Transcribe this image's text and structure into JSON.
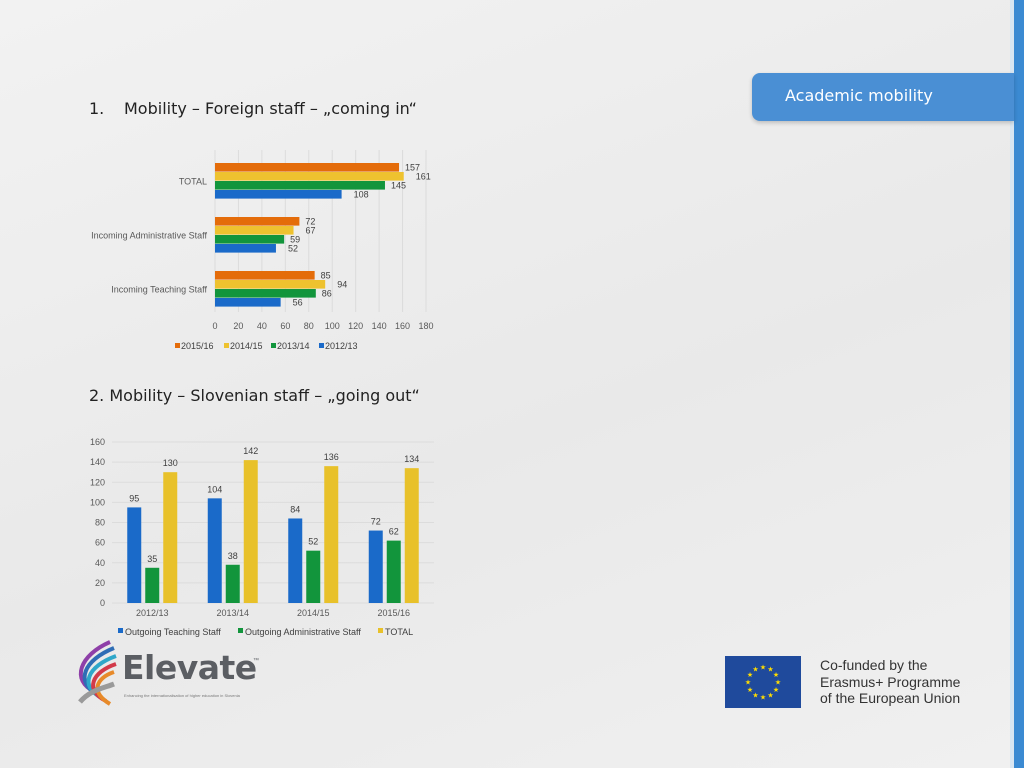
{
  "header": {
    "tab_label": "Academic mobility"
  },
  "section1": {
    "number": "1.",
    "title": "Mobility – Foreign staff – „coming in“"
  },
  "section2": {
    "title": "2. Mobility – Slovenian staff – „going out“"
  },
  "logo": {
    "name": "Elevate",
    "tagline": "Enhancing the internationalisation of higher education in Slovenia"
  },
  "eu": {
    "lines": [
      "Co-funded by the",
      "Erasmus+ Programme",
      "of the European Union"
    ]
  },
  "colors": {
    "orange": "#e46c0a",
    "yellow": "#eec22f",
    "green": "#12953c",
    "blue": "#1a6ac9",
    "tab": "#4a8fd4",
    "grid": "#d9d9d9"
  },
  "chart_data": [
    {
      "type": "bar",
      "orientation": "horizontal",
      "categories": [
        "TOTAL",
        "Incoming Administrative Staff",
        "Incoming Teaching Staff"
      ],
      "series": [
        {
          "name": "2015/16",
          "color": "#e46c0a",
          "values": [
            157,
            72,
            85
          ]
        },
        {
          "name": "2014/15",
          "color": "#eec22f",
          "values": [
            161,
            67,
            94
          ]
        },
        {
          "name": "2013/14",
          "color": "#12953c",
          "values": [
            145,
            59,
            86
          ]
        },
        {
          "name": "2012/13",
          "color": "#1a6ac9",
          "values": [
            108,
            52,
            56
          ]
        }
      ],
      "xlim": [
        0,
        180
      ],
      "xticks": [
        0,
        20,
        40,
        60,
        80,
        100,
        120,
        140,
        160,
        180
      ],
      "grid": true,
      "legend": "bottom"
    },
    {
      "type": "bar",
      "orientation": "vertical",
      "categories": [
        "2012/13",
        "2013/14",
        "2014/15",
        "2015/16"
      ],
      "series": [
        {
          "name": "Outgoing Teaching Staff",
          "color": "#1a6ac9",
          "values": [
            95,
            104,
            84,
            72
          ]
        },
        {
          "name": "Outgoing Administrative Staff",
          "color": "#12953c",
          "values": [
            35,
            38,
            52,
            62
          ]
        },
        {
          "name": "TOTAL",
          "color": "#e8c12a",
          "values": [
            130,
            142,
            136,
            134
          ]
        }
      ],
      "ylim": [
        0,
        160
      ],
      "yticks": [
        0,
        20,
        40,
        60,
        80,
        100,
        120,
        140,
        160
      ],
      "grid": true,
      "legend": "bottom"
    }
  ]
}
